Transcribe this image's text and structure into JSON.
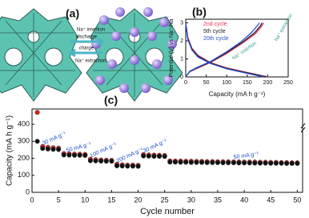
{
  "panel_a": {
    "label": "(a)",
    "insertion": "Na⁺ insertion",
    "discharge": "discharge",
    "charge": "charge",
    "extraction": "Na⁺ extraction"
  },
  "chart_data": [
    {
      "type": "line",
      "label": "(b)",
      "x_label": "Capacity (mA h g⁻¹)",
      "y_label": "Potential (V) vs Na⁺/Na",
      "xlim": [
        0,
        250
      ],
      "ylim": [
        0,
        3.2
      ],
      "xticks": [
        0,
        50,
        100,
        150,
        200,
        250
      ],
      "yticks": [
        0,
        1,
        2,
        3
      ],
      "annotations": [
        "Na⁺ extraction",
        "Na⁺ insertion"
      ],
      "series": [
        {
          "name": "2nd cycle",
          "color": "#e8325a",
          "x": [
            0,
            5,
            15,
            30,
            60,
            100,
            140,
            170,
            190,
            200,
            null,
            0,
            10,
            30,
            60,
            100,
            140,
            170,
            185,
            190
          ],
          "values": [
            3.0,
            2.2,
            1.6,
            1.2,
            0.8,
            0.5,
            0.3,
            0.15,
            0.05,
            0.01,
            null,
            0.01,
            0.3,
            0.5,
            0.8,
            1.3,
            1.9,
            2.4,
            2.8,
            3.0
          ]
        },
        {
          "name": "5th cycle",
          "color": "#222222",
          "x": [
            0,
            5,
            15,
            30,
            60,
            100,
            140,
            170,
            188,
            197,
            null,
            0,
            10,
            30,
            60,
            100,
            140,
            168,
            182,
            186
          ],
          "values": [
            3.0,
            2.15,
            1.55,
            1.15,
            0.78,
            0.48,
            0.28,
            0.14,
            0.05,
            0.01,
            null,
            0.01,
            0.3,
            0.52,
            0.82,
            1.35,
            1.95,
            2.45,
            2.82,
            3.0
          ]
        },
        {
          "name": "20th cycle",
          "color": "#2a4fd0",
          "x": [
            0,
            5,
            15,
            30,
            60,
            100,
            140,
            165,
            182,
            190,
            null,
            0,
            10,
            30,
            60,
            100,
            135,
            160,
            175,
            180
          ],
          "values": [
            3.0,
            2.1,
            1.5,
            1.1,
            0.75,
            0.45,
            0.25,
            0.12,
            0.04,
            0.01,
            null,
            0.01,
            0.32,
            0.55,
            0.85,
            1.4,
            1.95,
            2.45,
            2.85,
            3.0
          ]
        }
      ]
    },
    {
      "type": "scatter",
      "label": "(c)",
      "x_label": "Cycle number",
      "y_label": "Capacity (mA h g⁻¹)",
      "xlim": [
        0,
        51
      ],
      "ylim": [
        0,
        490
      ],
      "xticks": [
        0,
        5,
        10,
        15,
        20,
        25,
        30,
        35,
        40,
        45,
        50
      ],
      "yticks": [
        0,
        100,
        200,
        300,
        400
      ],
      "annotations": [
        "30 mA g⁻¹",
        "50 mA g⁻¹",
        "100 mA g⁻¹",
        "200 mA g⁻¹",
        "30 mA g⁻¹",
        "50 mA g⁻¹"
      ],
      "x": [
        1,
        2,
        3,
        4,
        5,
        6,
        7,
        8,
        9,
        10,
        11,
        12,
        13,
        14,
        15,
        16,
        17,
        18,
        19,
        20,
        21,
        22,
        23,
        24,
        25,
        26,
        27,
        28,
        29,
        30,
        31,
        32,
        33,
        34,
        35,
        36,
        37,
        38,
        39,
        40,
        41,
        42,
        43,
        44,
        45,
        46,
        47,
        48,
        49,
        50
      ],
      "series": [
        {
          "color": "#e02020",
          "values": [
            470,
            270,
            265,
            262,
            260,
            228,
            226,
            225,
            224,
            223,
            195,
            192,
            190,
            189,
            188,
            165,
            162,
            160,
            160,
            159,
            222,
            220,
            219,
            218,
            217,
            185,
            184,
            184,
            183,
            183,
            182,
            182,
            181,
            181,
            180,
            180,
            180,
            179,
            179,
            178,
            178,
            178,
            177,
            177,
            176,
            176,
            175,
            175,
            174,
            174
          ]
        },
        {
          "color": "#111111",
          "values": [
            300,
            258,
            255,
            253,
            252,
            220,
            219,
            218,
            218,
            217,
            186,
            185,
            184,
            183,
            183,
            156,
            155,
            154,
            154,
            153,
            214,
            213,
            212,
            212,
            211,
            178,
            178,
            177,
            177,
            176,
            176,
            176,
            175,
            175,
            175,
            174,
            174,
            174,
            173,
            173,
            173,
            172,
            172,
            172,
            171,
            171,
            171,
            170,
            170,
            170
          ]
        }
      ]
    }
  ]
}
